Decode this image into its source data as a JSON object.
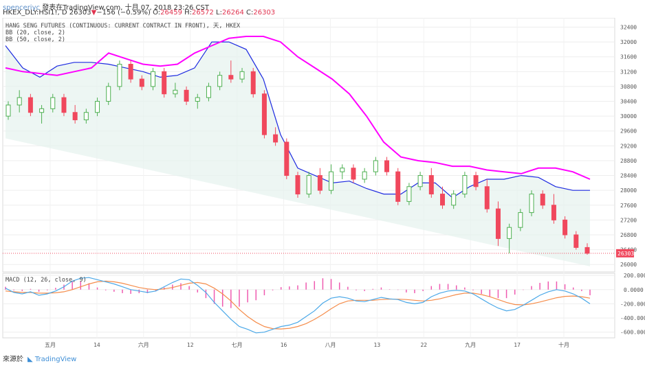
{
  "header": {
    "line1_user": "spenceriyc",
    "line1_rest": "發表在TradingView.com, 十月 07, 2018 23:26 CST",
    "symbol": "HKEX_DLY:HSI1!, D",
    "last": "26303",
    "change_arrow": "▼",
    "change": "−156 (−0.59%)",
    "o_label": "O:",
    "o": "26459",
    "h_label": "H:",
    "h": "26572",
    "l_label": "L:",
    "l": "26264",
    "c_label": "C:",
    "c": "26303"
  },
  "legend": {
    "title": "HANG SENG FUTURES (CONTINUOUS: CURRENT CONTRACT IN FRONT), 天, HKEX",
    "bb20": "BB (20, close, 2)",
    "bb50": "BB (50, close, 2)",
    "macd": "MACD (12, 26, close, 9)"
  },
  "footer": {
    "label": "來源於",
    "brand": "TradingView"
  },
  "colors": {
    "up": "#4caf50",
    "down": "#f0485d",
    "bb20": "#1c29e0",
    "bb50": "#ff00ff",
    "band_fill": "#e5f2ee",
    "macd": "#4aa8e8",
    "signal": "#f58c4a",
    "hist": "#ef5ab0",
    "last_price": "#f0485d"
  },
  "chart_data": [
    {
      "type": "candlestick",
      "title": "HANG SENG FUTURES (CONTINUOUS: CURRENT CONTRACT IN FRONT), 天, HKEX",
      "price_axis_ticks": [
        32400,
        32000,
        31600,
        31200,
        30800,
        30400,
        30000,
        29600,
        29200,
        28800,
        28400,
        28000,
        27600,
        27200,
        26800,
        26400,
        26000
      ],
      "ylim": [
        25800,
        32650
      ],
      "last_price_label": "26303",
      "time_axis_labels": [
        "五月",
        "14",
        "六月",
        "12",
        "七月",
        "16",
        "八月",
        "13",
        "22",
        "九月",
        "17",
        "十月"
      ],
      "grid": true,
      "series": [
        {
          "name": "BB (20, close, 2)",
          "upper": [
            31900,
            31300,
            31050,
            31350,
            31450,
            31450,
            31400,
            31300,
            31200,
            31050,
            31100,
            31300,
            32000,
            32000,
            31800,
            31000,
            29500,
            28600,
            28400,
            28200,
            28250,
            28050,
            27900,
            27900,
            28200,
            28200,
            27800,
            28100,
            28300,
            28300,
            28400,
            28350,
            28100,
            28000,
            28000
          ]
        },
        {
          "name": "BB (50, close, 2)",
          "upper": [
            31300,
            31200,
            31150,
            31100,
            31200,
            31300,
            31700,
            31550,
            31400,
            31350,
            31400,
            31700,
            31900,
            32100,
            32150,
            32150,
            32000,
            31600,
            31300,
            31000,
            30600,
            30000,
            29300,
            28900,
            28800,
            28750,
            28650,
            28650,
            28550,
            28500,
            28450,
            28600,
            28600,
            28500,
            28300
          ]
        }
      ],
      "ohlc": [
        [
          30000,
          30400,
          29900,
          30300
        ],
        [
          30300,
          30700,
          30100,
          30500
        ],
        [
          30500,
          30600,
          30000,
          30100
        ],
        [
          30100,
          30300,
          29800,
          30200
        ],
        [
          30200,
          30600,
          30100,
          30500
        ],
        [
          30500,
          30600,
          30000,
          30100
        ],
        [
          30100,
          30300,
          29800,
          29900
        ],
        [
          29900,
          30200,
          29800,
          30100
        ],
        [
          30100,
          30500,
          30000,
          30400
        ],
        [
          30400,
          30900,
          30300,
          30800
        ],
        [
          30800,
          31500,
          30700,
          31400
        ],
        [
          31400,
          31500,
          30900,
          31000
        ],
        [
          31000,
          31100,
          30700,
          30800
        ],
        [
          30800,
          31300,
          30700,
          31200
        ],
        [
          31200,
          31300,
          30500,
          30600
        ],
        [
          30600,
          30900,
          30500,
          30700
        ],
        [
          30700,
          30800,
          30300,
          30400
        ],
        [
          30400,
          30600,
          30200,
          30500
        ],
        [
          30500,
          30900,
          30400,
          30800
        ],
        [
          30800,
          31200,
          30700,
          31100
        ],
        [
          31100,
          31500,
          30900,
          31000
        ],
        [
          31000,
          31300,
          30900,
          31200
        ],
        [
          31200,
          31300,
          30500,
          30600
        ],
        [
          30600,
          30700,
          29400,
          29500
        ],
        [
          29500,
          29700,
          29200,
          29300
        ],
        [
          29300,
          29400,
          28300,
          28400
        ],
        [
          28400,
          28500,
          27800,
          27900
        ],
        [
          27900,
          28500,
          27800,
          28400
        ],
        [
          28400,
          28600,
          27900,
          28000
        ],
        [
          28000,
          28700,
          27900,
          28500
        ],
        [
          28500,
          28700,
          28300,
          28600
        ],
        [
          28600,
          28700,
          28200,
          28300
        ],
        [
          28300,
          28600,
          28200,
          28500
        ],
        [
          28500,
          28900,
          28400,
          28800
        ],
        [
          28800,
          28900,
          28400,
          28500
        ],
        [
          28500,
          28600,
          27600,
          27700
        ],
        [
          27700,
          28200,
          27600,
          28100
        ],
        [
          28100,
          28500,
          28000,
          28400
        ],
        [
          28400,
          28600,
          27800,
          27900
        ],
        [
          27900,
          28100,
          27500,
          27600
        ],
        [
          27600,
          28000,
          27500,
          27900
        ],
        [
          27900,
          28500,
          27800,
          28400
        ],
        [
          28400,
          28500,
          28000,
          28100
        ],
        [
          28100,
          28300,
          27400,
          27500
        ],
        [
          27500,
          27700,
          26500,
          26700
        ],
        [
          26700,
          27100,
          26300,
          27000
        ],
        [
          27000,
          27500,
          26900,
          27400
        ],
        [
          27400,
          28000,
          27300,
          27900
        ],
        [
          27900,
          28000,
          27500,
          27600
        ],
        [
          27600,
          27900,
          27100,
          27200
        ],
        [
          27200,
          27300,
          26700,
          26800
        ],
        [
          26800,
          26900,
          26400,
          26459
        ],
        [
          26459,
          26572,
          26264,
          26303
        ]
      ]
    },
    {
      "type": "line",
      "title": "MACD (12, 26, close, 9)",
      "y_axis_ticks": [
        200,
        0,
        -200,
        -400,
        -600
      ],
      "ylim": [
        -680,
        230
      ],
      "grid": true,
      "macd": [
        20,
        -40,
        -60,
        -30,
        -80,
        -60,
        -20,
        40,
        120,
        160,
        170,
        140,
        110,
        80,
        40,
        0,
        -20,
        -40,
        -20,
        40,
        100,
        150,
        140,
        60,
        -40,
        -180,
        -300,
        -420,
        -520,
        -560,
        -610,
        -600,
        -560,
        -520,
        -500,
        -460,
        -380,
        -300,
        -190,
        -120,
        -100,
        -120,
        -160,
        -170,
        -140,
        -110,
        -130,
        -140,
        -180,
        -200,
        -180,
        -100,
        -50,
        -20,
        -10,
        -20,
        -60,
        -130,
        -200,
        -260,
        -300,
        -280,
        -220,
        -150,
        -80,
        -30,
        0,
        -20,
        -60,
        -120,
        -200
      ],
      "signal": [
        -20,
        -30,
        -40,
        -40,
        -50,
        -50,
        -45,
        -30,
        0,
        40,
        80,
        110,
        120,
        110,
        90,
        60,
        30,
        10,
        0,
        10,
        30,
        60,
        90,
        100,
        80,
        20,
        -60,
        -160,
        -280,
        -380,
        -460,
        -520,
        -550,
        -555,
        -545,
        -520,
        -480,
        -420,
        -350,
        -270,
        -200,
        -160,
        -150,
        -150,
        -150,
        -140,
        -135,
        -135,
        -140,
        -150,
        -160,
        -150,
        -130,
        -100,
        -70,
        -50,
        -50,
        -70,
        -100,
        -140,
        -180,
        -210,
        -215,
        -200,
        -175,
        -145,
        -115,
        -95,
        -90,
        -100,
        -120
      ]
    }
  ]
}
